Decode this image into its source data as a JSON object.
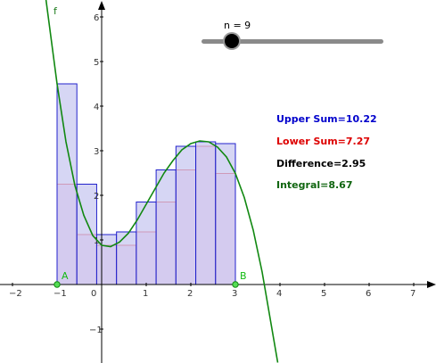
{
  "slider": {
    "label": "n = 9",
    "value": 9
  },
  "function_label": "f",
  "points": {
    "a_label": "A",
    "b_label": "B"
  },
  "stats": {
    "upper": "Upper Sum=10.22",
    "lower": "Lower Sum=7.27",
    "difference": "Difference=2.95",
    "integral": "Integral=8.67"
  },
  "colors": {
    "upper": "#0000cc",
    "lower": "#dd0000",
    "difference": "#000000",
    "integral": "#116611",
    "curve": "#118811",
    "upper_fill": "#c8c8f0",
    "lower_fill": "#f2c4e6"
  },
  "chart_data": {
    "type": "area",
    "function_name": "f",
    "xlim": [
      -2.3,
      7.5
    ],
    "ylim": [
      -1.7,
      6.3
    ],
    "x_ticks": [
      "−2",
      "−1",
      "0",
      "1",
      "2",
      "3",
      "4",
      "5",
      "6",
      "7"
    ],
    "y_ticks": [
      "−1",
      "1",
      "2",
      "3",
      "4",
      "5",
      "6"
    ],
    "interval": [
      -1,
      3
    ],
    "n": 9,
    "upper_heights": [
      4.5,
      2.25,
      1.12,
      1.18,
      1.85,
      2.57,
      3.1,
      3.2,
      3.16
    ],
    "lower_heights": [
      2.25,
      1.12,
      0.88,
      0.88,
      1.18,
      1.85,
      2.57,
      3.1,
      2.49
    ],
    "curve_points": [
      [
        -1.25,
        6.4
      ],
      [
        -1.0,
        4.5
      ],
      [
        -0.8,
        3.2
      ],
      [
        -0.6,
        2.22
      ],
      [
        -0.4,
        1.55
      ],
      [
        -0.2,
        1.1
      ],
      [
        0.0,
        0.88
      ],
      [
        0.2,
        0.85
      ],
      [
        0.4,
        0.95
      ],
      [
        0.6,
        1.15
      ],
      [
        0.8,
        1.45
      ],
      [
        1.0,
        1.8
      ],
      [
        1.2,
        2.15
      ],
      [
        1.4,
        2.5
      ],
      [
        1.6,
        2.78
      ],
      [
        1.8,
        3.02
      ],
      [
        2.0,
        3.16
      ],
      [
        2.2,
        3.22
      ],
      [
        2.4,
        3.2
      ],
      [
        2.6,
        3.08
      ],
      [
        2.8,
        2.86
      ],
      [
        3.0,
        2.49
      ],
      [
        3.2,
        1.95
      ],
      [
        3.4,
        1.22
      ],
      [
        3.6,
        0.28
      ],
      [
        3.8,
        -0.88
      ],
      [
        3.95,
        -1.75
      ]
    ]
  }
}
